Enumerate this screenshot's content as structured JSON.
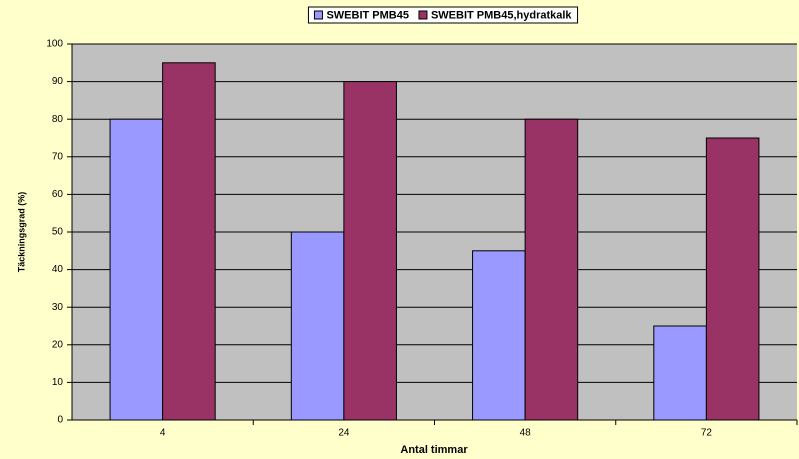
{
  "chart_data": {
    "type": "bar",
    "categories": [
      "4",
      "24",
      "48",
      "72"
    ],
    "series": [
      {
        "name": "SWEBIT PMB45",
        "color": "#9999ff",
        "values": [
          80,
          50,
          45,
          25
        ]
      },
      {
        "name": "SWEBIT PMB45,hydratkalk",
        "color": "#993366",
        "values": [
          95,
          90,
          80,
          75
        ]
      }
    ],
    "xlabel": "Antal timmar",
    "ylabel": "Täckningsgrad (%)",
    "ylim": [
      0,
      100
    ],
    "yticks": [
      0,
      10,
      20,
      30,
      40,
      50,
      60,
      70,
      80,
      90,
      100
    ],
    "grid": true,
    "legend": "top"
  }
}
